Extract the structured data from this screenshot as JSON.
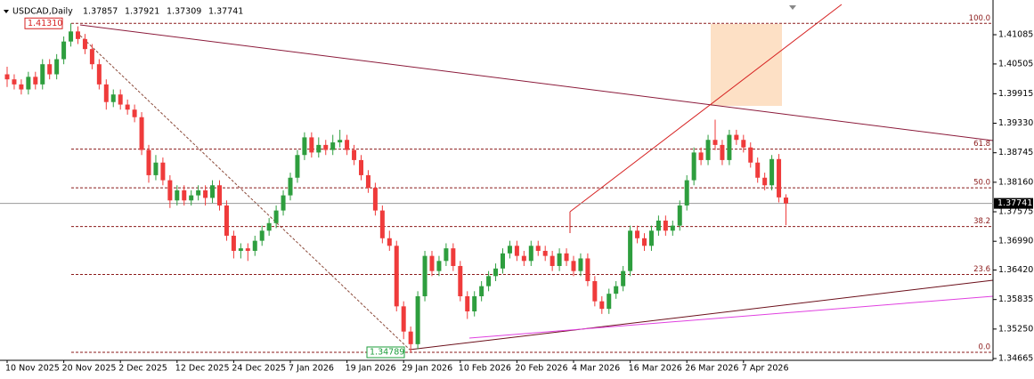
{
  "chart_data": {
    "type": "candlestick",
    "title": "USDCAD,Daily",
    "up_color": "#2e9e3e",
    "down_color": "#ef3b3b",
    "ylim": [
      1.3463,
      1.41685
    ],
    "yticks": [
      1.41085,
      1.40505,
      1.39915,
      {
        "value": 1.3933,
        "label": "1.39330"
      },
      1.38745,
      {
        "value": 1.3816,
        "label": "1.38160"
      },
      1.37575,
      {
        "value": 1.3699,
        "label": "1.36990"
      },
      {
        "value": 1.3642,
        "label": "1.36420"
      },
      1.35835,
      {
        "value": 1.3525,
        "label": "1.35250"
      },
      1.34665
    ],
    "fib_levels": [
      {
        "value": 1.4131,
        "label": "100.0"
      },
      {
        "value": 1.38816,
        "label": "61.8"
      },
      {
        "value": 1.3805,
        "label": "50.0"
      },
      {
        "value": 1.37283,
        "label": "38.2"
      },
      {
        "value": 1.36333,
        "label": "23.6"
      },
      {
        "value": 1.34789,
        "label": "0.0"
      }
    ],
    "annotations": [
      {
        "value": 1.4131,
        "label": "1.41310"
      },
      {
        "value": 1.34789,
        "label": "1.34789"
      }
    ],
    "current_price": {
      "value": 1.37741,
      "label": "1.37741"
    },
    "categories": [
      "10 Nov 2025",
      null,
      null,
      null,
      null,
      null,
      null,
      null,
      "20 Nov 2025",
      null,
      null,
      null,
      null,
      null,
      null,
      null,
      "2 Dec 2025",
      null,
      null,
      null,
      null,
      null,
      null,
      null,
      "12 Dec 2025",
      null,
      null,
      null,
      null,
      null,
      null,
      null,
      "24 Dec 2025",
      null,
      null,
      null,
      null,
      null,
      null,
      null,
      "7 Jan 2026",
      null,
      null,
      null,
      null,
      null,
      null,
      null,
      "19 Jan 2026",
      null,
      null,
      null,
      null,
      null,
      null,
      null,
      "29 Jan 2026",
      null,
      null,
      null,
      null,
      null,
      null,
      null,
      "10 Feb 2026",
      null,
      null,
      null,
      null,
      null,
      null,
      null,
      "20 Feb 2026",
      null,
      null,
      null,
      null,
      null,
      null,
      null,
      "4 Mar 2026",
      null,
      null,
      null,
      null,
      null,
      null,
      null,
      "16 Mar 2026",
      null,
      null,
      null,
      null,
      null,
      null,
      null,
      "26 Mar 2026",
      null,
      null,
      null,
      null,
      null,
      null,
      null,
      "7 Apr 2026",
      null,
      null,
      null,
      null,
      null,
      null
    ],
    "ohlc": [
      [
        1.403,
        1.4045,
        1.4005,
        1.402
      ],
      [
        1.402,
        1.403,
        1.4,
        1.401
      ],
      [
        1.401,
        1.402,
        1.399,
        1.4
      ],
      [
        1.4,
        1.4035,
        1.399,
        1.4025
      ],
      [
        1.4025,
        1.4035,
        1.4,
        1.401
      ],
      [
        1.401,
        1.406,
        1.4,
        1.405
      ],
      [
        1.405,
        1.406,
        1.402,
        1.403
      ],
      [
        1.403,
        1.407,
        1.402,
        1.406
      ],
      [
        1.406,
        1.4105,
        1.405,
        1.4095
      ],
      [
        1.4095,
        1.4131,
        1.4085,
        1.4115
      ],
      [
        1.4115,
        1.4125,
        1.409,
        1.41
      ],
      [
        1.41,
        1.411,
        1.407,
        1.408
      ],
      [
        1.408,
        1.409,
        1.404,
        1.405
      ],
      [
        1.405,
        1.406,
        1.4,
        1.401
      ],
      [
        1.401,
        1.402,
        1.396,
        1.3975
      ],
      [
        1.3975,
        1.4,
        1.3965,
        1.399
      ],
      [
        1.399,
        1.4,
        1.396,
        1.397
      ],
      [
        1.397,
        1.398,
        1.395,
        1.396
      ],
      [
        1.396,
        1.397,
        1.3935,
        1.3945
      ],
      [
        1.3945,
        1.3955,
        1.387,
        1.388
      ],
      [
        1.388,
        1.389,
        1.3815,
        1.383
      ],
      [
        1.383,
        1.387,
        1.382,
        1.3855
      ],
      [
        1.3855,
        1.3865,
        1.381,
        1.382
      ],
      [
        1.382,
        1.383,
        1.3765,
        1.378
      ],
      [
        1.378,
        1.381,
        1.377,
        1.38
      ],
      [
        1.38,
        1.381,
        1.377,
        1.378
      ],
      [
        1.378,
        1.38,
        1.377,
        1.379
      ],
      [
        1.379,
        1.381,
        1.378,
        1.38
      ],
      [
        1.38,
        1.381,
        1.377,
        1.3785
      ],
      [
        1.3785,
        1.382,
        1.3775,
        1.381
      ],
      [
        1.381,
        1.382,
        1.376,
        1.377
      ],
      [
        1.377,
        1.378,
        1.37,
        1.371
      ],
      [
        1.371,
        1.372,
        1.3665,
        1.368
      ],
      [
        1.368,
        1.3695,
        1.3665,
        1.3685
      ],
      [
        1.3685,
        1.3695,
        1.366,
        1.368
      ],
      [
        1.368,
        1.371,
        1.367,
        1.37
      ],
      [
        1.37,
        1.373,
        1.369,
        1.372
      ],
      [
        1.372,
        1.3745,
        1.371,
        1.3735
      ],
      [
        1.3735,
        1.377,
        1.3725,
        1.376
      ],
      [
        1.376,
        1.38,
        1.375,
        1.379
      ],
      [
        1.379,
        1.3835,
        1.378,
        1.3825
      ],
      [
        1.3825,
        1.388,
        1.3815,
        1.387
      ],
      [
        1.387,
        1.3915,
        1.386,
        1.3905
      ],
      [
        1.3905,
        1.3915,
        1.3865,
        1.3875
      ],
      [
        1.3875,
        1.3905,
        1.3865,
        1.389
      ],
      [
        1.389,
        1.39,
        1.387,
        1.388
      ],
      [
        1.388,
        1.391,
        1.387,
        1.3895
      ],
      [
        1.3895,
        1.392,
        1.3885,
        1.39
      ],
      [
        1.39,
        1.391,
        1.387,
        1.388
      ],
      [
        1.388,
        1.389,
        1.385,
        1.386
      ],
      [
        1.386,
        1.387,
        1.382,
        1.383
      ],
      [
        1.383,
        1.384,
        1.3795,
        1.3805
      ],
      [
        1.3805,
        1.3815,
        1.375,
        1.376
      ],
      [
        1.376,
        1.377,
        1.3695,
        1.3705
      ],
      [
        1.3705,
        1.372,
        1.368,
        1.369
      ],
      [
        1.369,
        1.37,
        1.356,
        1.357
      ],
      [
        1.357,
        1.358,
        1.3505,
        1.352
      ],
      [
        1.352,
        1.353,
        1.3479,
        1.3495
      ],
      [
        1.3495,
        1.36,
        1.3485,
        1.359
      ],
      [
        1.359,
        1.368,
        1.358,
        1.367
      ],
      [
        1.367,
        1.368,
        1.363,
        1.364
      ],
      [
        1.364,
        1.367,
        1.363,
        1.366
      ],
      [
        1.366,
        1.3695,
        1.365,
        1.3685
      ],
      [
        1.3685,
        1.3695,
        1.364,
        1.365
      ],
      [
        1.365,
        1.366,
        1.358,
        1.359
      ],
      [
        1.359,
        1.36,
        1.3545,
        1.356
      ],
      [
        1.356,
        1.36,
        1.355,
        1.359
      ],
      [
        1.359,
        1.362,
        1.358,
        1.361
      ],
      [
        1.361,
        1.364,
        1.36,
        1.363
      ],
      [
        1.363,
        1.3655,
        1.362,
        1.3645
      ],
      [
        1.3645,
        1.3685,
        1.3635,
        1.3675
      ],
      [
        1.3675,
        1.37,
        1.3665,
        1.369
      ],
      [
        1.369,
        1.37,
        1.366,
        1.367
      ],
      [
        1.367,
        1.368,
        1.365,
        1.366
      ],
      [
        1.366,
        1.37,
        1.365,
        1.369
      ],
      [
        1.369,
        1.37,
        1.367,
        1.368
      ],
      [
        1.368,
        1.369,
        1.366,
        1.367
      ],
      [
        1.367,
        1.368,
        1.364,
        1.365
      ],
      [
        1.365,
        1.3685,
        1.364,
        1.3675
      ],
      [
        1.3675,
        1.3685,
        1.365,
        1.366
      ],
      [
        1.366,
        1.367,
        1.363,
        1.364
      ],
      [
        1.364,
        1.3675,
        1.363,
        1.3665
      ],
      [
        1.3665,
        1.3675,
        1.361,
        1.362
      ],
      [
        1.362,
        1.363,
        1.357,
        1.358
      ],
      [
        1.358,
        1.359,
        1.3555,
        1.3565
      ],
      [
        1.3565,
        1.3605,
        1.3555,
        1.3595
      ],
      [
        1.3595,
        1.362,
        1.3585,
        1.361
      ],
      [
        1.361,
        1.365,
        1.36,
        1.364
      ],
      [
        1.364,
        1.373,
        1.363,
        1.372
      ],
      [
        1.372,
        1.373,
        1.3695,
        1.3705
      ],
      [
        1.3705,
        1.3715,
        1.368,
        1.369
      ],
      [
        1.369,
        1.373,
        1.368,
        1.372
      ],
      [
        1.372,
        1.375,
        1.371,
        1.374
      ],
      [
        1.374,
        1.375,
        1.371,
        1.372
      ],
      [
        1.372,
        1.374,
        1.371,
        1.373
      ],
      [
        1.373,
        1.378,
        1.372,
        1.377
      ],
      [
        1.377,
        1.383,
        1.376,
        1.382
      ],
      [
        1.382,
        1.3885,
        1.381,
        1.3875
      ],
      [
        1.3875,
        1.3885,
        1.385,
        1.386
      ],
      [
        1.386,
        1.391,
        1.385,
        1.39
      ],
      [
        1.39,
        1.394,
        1.388,
        1.389
      ],
      [
        1.389,
        1.39,
        1.385,
        1.386
      ],
      [
        1.386,
        1.392,
        1.385,
        1.391
      ],
      [
        1.391,
        1.392,
        1.389,
        1.39
      ],
      [
        1.39,
        1.391,
        1.3875,
        1.3885
      ],
      [
        1.3885,
        1.3895,
        1.3845,
        1.3855
      ],
      [
        1.3855,
        1.3865,
        1.3815,
        1.3825
      ],
      [
        1.3825,
        1.3835,
        1.38,
        1.381
      ],
      [
        1.381,
        1.387,
        1.38,
        1.3862
      ],
      [
        1.3862,
        1.3872,
        1.3776,
        1.3786
      ],
      [
        1.37857,
        1.37921,
        1.37309,
        1.37741
      ]
    ]
  }
}
